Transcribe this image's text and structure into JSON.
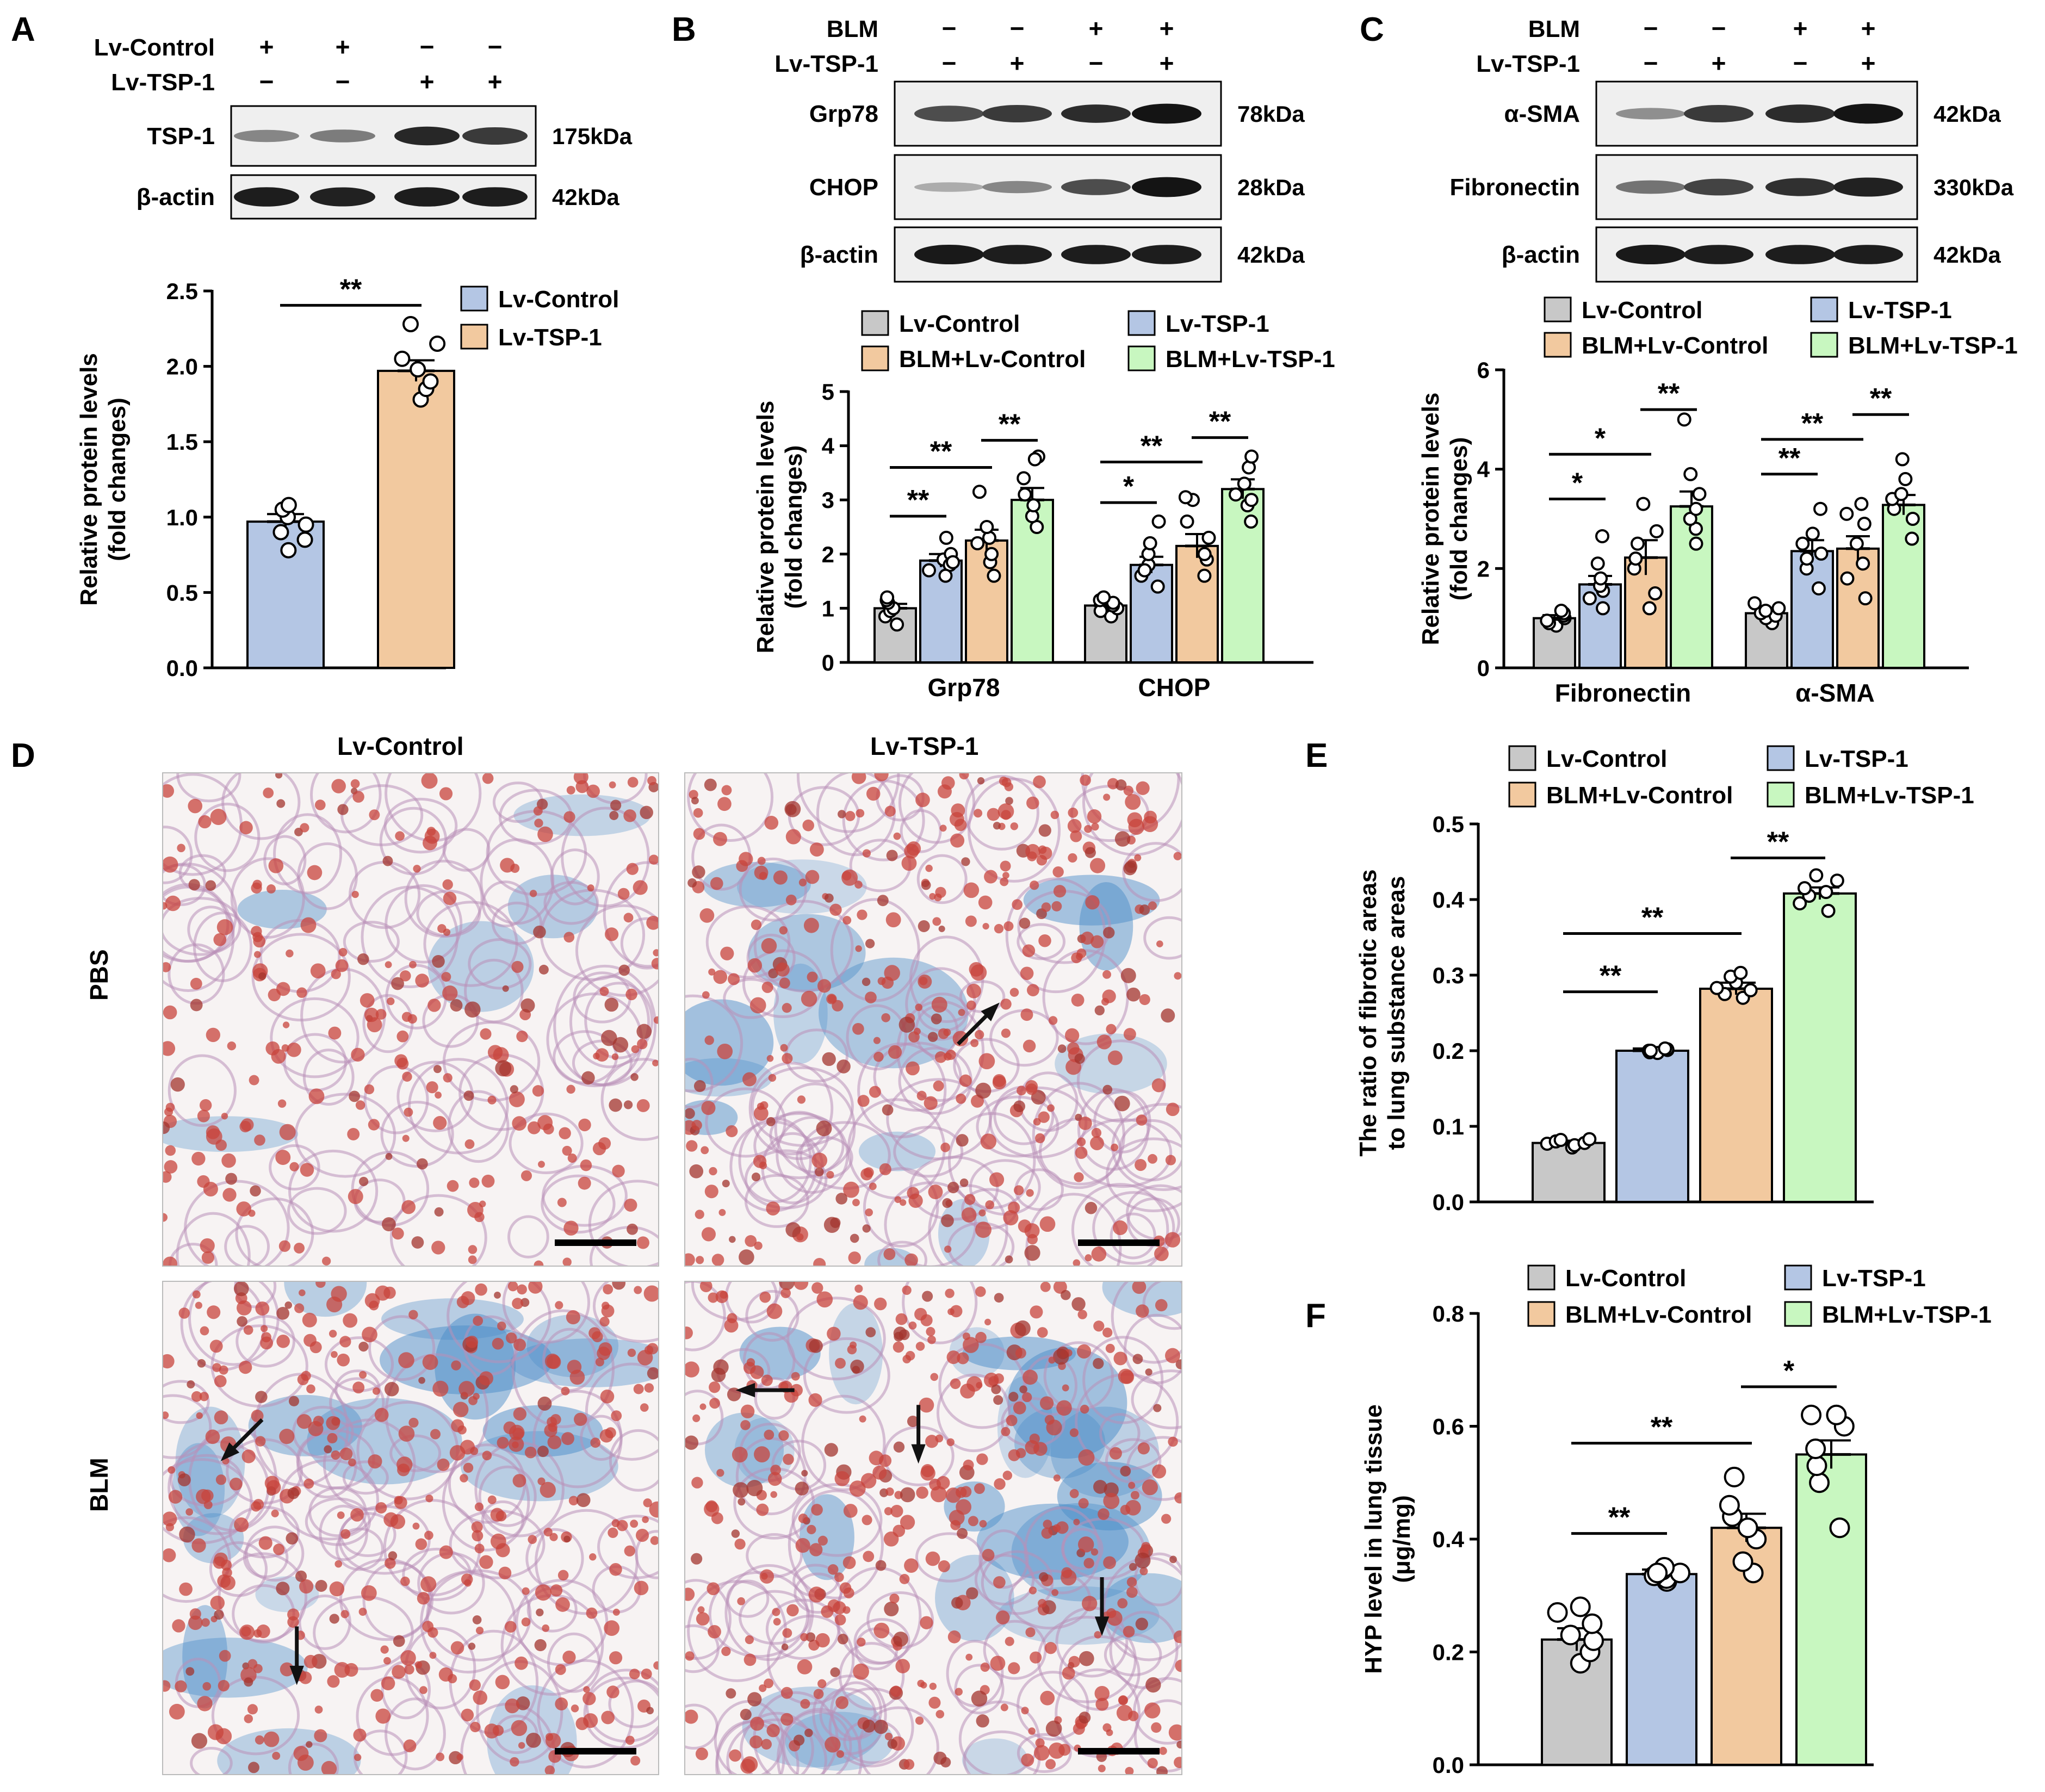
{
  "colors": {
    "control": "#c8c8c8",
    "tsp1": "#b4c6e4",
    "blm_control": "#f2c99f",
    "blm_tsp1": "#c8f7c0",
    "axis": "#000000",
    "blot_bg": "#efefef",
    "tissue_red": "#c8443c",
    "tissue_blue": "#4a8cc8"
  },
  "panels": {
    "A": {
      "letter": "A",
      "blot": {
        "conditions": [
          {
            "name": "Lv-Control",
            "signs": [
              "+",
              "+",
              "−",
              "−"
            ]
          },
          {
            "name": "Lv-TSP-1",
            "signs": [
              "−",
              "−",
              "+",
              "+"
            ]
          }
        ],
        "rows": [
          {
            "protein": "TSP-1",
            "kda": "175kDa",
            "intensity": [
              0.35,
              0.4,
              0.85,
              0.75
            ]
          },
          {
            "protein": "β-actin",
            "kda": "42kDa",
            "intensity": [
              0.9,
              0.88,
              0.9,
              0.9
            ]
          }
        ]
      }
    },
    "B": {
      "letter": "B",
      "blot": {
        "conditions": [
          {
            "name": "BLM",
            "signs": [
              "−",
              "−",
              "+",
              "+"
            ]
          },
          {
            "name": "Lv-TSP-1",
            "signs": [
              "−",
              "+",
              "−",
              "+"
            ]
          }
        ],
        "rows": [
          {
            "protein": "Grp78",
            "kda": "78kDa",
            "intensity": [
              0.65,
              0.75,
              0.82,
              0.95
            ]
          },
          {
            "protein": "CHOP",
            "kda": "28kDa",
            "intensity": [
              0.15,
              0.35,
              0.65,
              0.95
            ]
          },
          {
            "protein": "β-actin",
            "kda": "42kDa",
            "intensity": [
              0.92,
              0.9,
              0.9,
              0.9
            ]
          }
        ]
      }
    },
    "C": {
      "letter": "C",
      "blot": {
        "conditions": [
          {
            "name": "BLM",
            "signs": [
              "−",
              "−",
              "+",
              "+"
            ]
          },
          {
            "name": "Lv-TSP-1",
            "signs": [
              "−",
              "+",
              "−",
              "+"
            ]
          }
        ],
        "rows": [
          {
            "protein": "α-SMA",
            "kda": "42kDa",
            "intensity": [
              0.3,
              0.75,
              0.82,
              0.95
            ]
          },
          {
            "protein": "Fibronectin",
            "kda": "330kDa",
            "intensity": [
              0.45,
              0.7,
              0.8,
              0.88
            ]
          },
          {
            "protein": "β-actin",
            "kda": "42kDa",
            "intensity": [
              0.92,
              0.9,
              0.9,
              0.9
            ]
          }
        ]
      }
    },
    "D": {
      "letter": "D",
      "column_labels": [
        "Lv-Control",
        "Lv-TSP-1"
      ],
      "row_labels": [
        "PBS",
        "BLM"
      ]
    },
    "E": {
      "letter": "E"
    },
    "F": {
      "letter": "F"
    }
  },
  "chart_data": [
    {
      "id": "A",
      "type": "bar",
      "legend": [
        "Lv-Control",
        "Lv-TSP-1"
      ],
      "legend_position": "top-right",
      "categories": [
        "Lv-Control",
        "Lv-TSP-1"
      ],
      "values": [
        0.97,
        1.97
      ],
      "errors": [
        0.05,
        0.07
      ],
      "points": [
        [
          0.78,
          0.85,
          0.9,
          0.95,
          1.0,
          1.05,
          1.08
        ],
        [
          1.78,
          1.85,
          1.9,
          1.98,
          2.05,
          2.15,
          2.28
        ]
      ],
      "colors": [
        "#b4c6e4",
        "#f2c99f"
      ],
      "ylabel": [
        "Relative protein levels",
        "(fold changes)"
      ],
      "ylim": [
        0,
        2.5
      ],
      "yticks": [
        "0.0",
        "0.5",
        "1.0",
        "1.5",
        "2.0",
        "2.5"
      ],
      "significance": [
        {
          "from": 0,
          "to": 1,
          "label": "**"
        }
      ]
    },
    {
      "id": "B",
      "type": "bar",
      "legend": [
        "Lv-Control",
        "Lv-TSP-1",
        "BLM+Lv-Control",
        "BLM+Lv-TSP-1"
      ],
      "legend_position": "top",
      "groups": [
        "Grp78",
        "CHOP"
      ],
      "series": [
        {
          "name": "Lv-Control",
          "values": [
            1.0,
            1.05
          ],
          "errors": [
            0.08,
            0.07
          ]
        },
        {
          "name": "Lv-TSP-1",
          "values": [
            1.88,
            1.8
          ],
          "errors": [
            0.12,
            0.15
          ]
        },
        {
          "name": "BLM+Lv-Control",
          "values": [
            2.25,
            2.15
          ],
          "errors": [
            0.2,
            0.22
          ]
        },
        {
          "name": "BLM+Lv-TSP-1",
          "values": [
            3.0,
            3.2
          ],
          "errors": [
            0.22,
            0.18
          ]
        }
      ],
      "points": [
        [
          [
            0.7,
            0.85,
            0.95,
            1.0,
            1.1,
            1.15,
            1.2
          ],
          [
            1.9,
            2.0,
            2.3,
            1.7,
            1.8,
            1.6,
            1.85
          ],
          [
            1.85,
            2.0,
            2.2,
            2.3,
            2.5,
            3.15,
            1.6
          ],
          [
            2.5,
            2.7,
            2.9,
            3.1,
            3.4,
            3.8,
            3.75
          ]
        ],
        [
          [
            0.85,
            0.95,
            1.0,
            1.05,
            1.1,
            1.15,
            1.2
          ],
          [
            1.4,
            1.6,
            1.8,
            2.0,
            2.2,
            2.6,
            1.7
          ],
          [
            1.6,
            1.9,
            2.0,
            2.3,
            2.6,
            3.0,
            3.05
          ],
          [
            2.6,
            2.9,
            3.1,
            3.3,
            3.6,
            3.8,
            3.0
          ]
        ]
      ],
      "colors": [
        "#c8c8c8",
        "#b4c6e4",
        "#f2c99f",
        "#c8f7c0"
      ],
      "ylabel": [
        "Relative protein levels",
        "(fold changes)"
      ],
      "ylim": [
        0,
        5
      ],
      "yticks": [
        "0",
        "1",
        "2",
        "3",
        "4",
        "5"
      ],
      "significance": [
        {
          "group": 0,
          "from": 0,
          "to": 1,
          "label": "**",
          "y": 2.7
        },
        {
          "group": 0,
          "from": 0,
          "to": 2,
          "label": "**",
          "y": 3.6
        },
        {
          "group": 0,
          "from": 2,
          "to": 3,
          "label": "**",
          "y": 4.1
        },
        {
          "group": 1,
          "from": 0,
          "to": 1,
          "label": "*",
          "y": 2.95
        },
        {
          "group": 1,
          "from": 0,
          "to": 2,
          "label": "**",
          "y": 3.7
        },
        {
          "group": 1,
          "from": 2,
          "to": 3,
          "label": "**",
          "y": 4.15
        }
      ]
    },
    {
      "id": "C",
      "type": "bar",
      "legend": [
        "Lv-Control",
        "Lv-TSP-1",
        "BLM+Lv-Control",
        "BLM+Lv-TSP-1"
      ],
      "legend_position": "top",
      "groups": [
        "Fibronectin",
        "α-SMA"
      ],
      "series": [
        {
          "name": "Lv-Control",
          "values": [
            1.0,
            1.1
          ],
          "errors": [
            0.06,
            0.08
          ]
        },
        {
          "name": "Lv-TSP-1",
          "values": [
            1.68,
            2.35
          ],
          "errors": [
            0.17,
            0.22
          ]
        },
        {
          "name": "BLM+Lv-Control",
          "values": [
            2.22,
            2.4
          ],
          "errors": [
            0.35,
            0.25
          ]
        },
        {
          "name": "BLM+Lv-TSP-1",
          "values": [
            3.25,
            3.28
          ],
          "errors": [
            0.3,
            0.2
          ]
        }
      ],
      "points": [
        [
          [
            0.85,
            0.9,
            0.95,
            1.0,
            1.05,
            1.1,
            1.15
          ],
          [
            1.2,
            1.4,
            1.55,
            1.65,
            1.8,
            2.1,
            2.65
          ],
          [
            1.2,
            1.5,
            2.0,
            2.2,
            2.5,
            2.75,
            3.3
          ],
          [
            2.5,
            2.8,
            3.0,
            3.2,
            3.5,
            3.9,
            5.0
          ]
        ],
        [
          [
            0.9,
            1.0,
            1.05,
            1.1,
            1.15,
            1.2,
            1.3
          ],
          [
            1.6,
            2.0,
            2.2,
            2.3,
            2.5,
            2.7,
            3.2
          ],
          [
            1.4,
            1.8,
            2.1,
            2.5,
            2.9,
            3.1,
            3.3
          ],
          [
            2.6,
            3.0,
            3.2,
            3.4,
            3.5,
            3.8,
            4.2
          ]
        ]
      ],
      "colors": [
        "#c8c8c8",
        "#b4c6e4",
        "#f2c99f",
        "#c8f7c0"
      ],
      "ylabel": [
        "Relative protein levels",
        "(fold changes)"
      ],
      "ylim": [
        0,
        6
      ],
      "yticks": [
        "0",
        "2",
        "4",
        "6"
      ],
      "significance": [
        {
          "group": 0,
          "from": 0,
          "to": 1,
          "label": "*",
          "y": 3.4
        },
        {
          "group": 0,
          "from": 0,
          "to": 2,
          "label": "*",
          "y": 4.3
        },
        {
          "group": 0,
          "from": 2,
          "to": 3,
          "label": "**",
          "y": 5.2
        },
        {
          "group": 1,
          "from": 0,
          "to": 1,
          "label": "**",
          "y": 3.9
        },
        {
          "group": 1,
          "from": 0,
          "to": 2,
          "label": "**",
          "y": 4.6
        },
        {
          "group": 1,
          "from": 2,
          "to": 3,
          "label": "**",
          "y": 5.1
        }
      ]
    },
    {
      "id": "E",
      "type": "bar",
      "legend": [
        "Lv-Control",
        "Lv-TSP-1",
        "BLM+Lv-Control",
        "BLM+Lv-TSP-1"
      ],
      "legend_position": "top",
      "categories": [
        "Lv-Control",
        "Lv-TSP-1",
        "BLM+Lv-Control",
        "BLM+Lv-TSP-1"
      ],
      "values": [
        0.078,
        0.2,
        0.282,
        0.408
      ],
      "errors": [
        0.003,
        0.003,
        0.008,
        0.008
      ],
      "points": [
        [
          0.072,
          0.075,
          0.077,
          0.078,
          0.08,
          0.082,
          0.083
        ],
        [
          0.197,
          0.198,
          0.2,
          0.2,
          0.201,
          0.202,
          0.203
        ],
        [
          0.27,
          0.275,
          0.28,
          0.283,
          0.29,
          0.298,
          0.303
        ],
        [
          0.385,
          0.395,
          0.405,
          0.41,
          0.415,
          0.425,
          0.432
        ]
      ],
      "colors": [
        "#c8c8c8",
        "#b4c6e4",
        "#f2c99f",
        "#c8f7c0"
      ],
      "ylabel": [
        "The ratio of fibrotic areas",
        "to lung substance areas"
      ],
      "ylim": [
        0,
        0.5
      ],
      "yticks": [
        "0.0",
        "0.1",
        "0.2",
        "0.3",
        "0.4",
        "0.5"
      ],
      "significance": [
        {
          "from": 0,
          "to": 1,
          "label": "**",
          "y": 0.278
        },
        {
          "from": 0,
          "to": 2,
          "label": "**",
          "y": 0.355
        },
        {
          "from": 2,
          "to": 3,
          "label": "**",
          "y": 0.455
        }
      ]
    },
    {
      "id": "F",
      "type": "bar",
      "legend": [
        "Lv-Control",
        "Lv-TSP-1",
        "BLM+Lv-Control",
        "BLM+Lv-TSP-1"
      ],
      "legend_position": "top",
      "categories": [
        "Lv-Control",
        "Lv-TSP-1",
        "BLM+Lv-Control",
        "BLM+Lv-TSP-1"
      ],
      "values": [
        0.222,
        0.338,
        0.42,
        0.55
      ],
      "errors": [
        0.02,
        0.008,
        0.025,
        0.025
      ],
      "points": [
        [
          0.18,
          0.2,
          0.22,
          0.23,
          0.25,
          0.27,
          0.28
        ],
        [
          0.325,
          0.33,
          0.335,
          0.34,
          0.345,
          0.35,
          0.34
        ],
        [
          0.34,
          0.36,
          0.4,
          0.42,
          0.44,
          0.46,
          0.51
        ],
        [
          0.42,
          0.5,
          0.53,
          0.56,
          0.6,
          0.62,
          0.62
        ]
      ],
      "colors": [
        "#c8c8c8",
        "#b4c6e4",
        "#f2c99f",
        "#c8f7c0"
      ],
      "ylabel": [
        "HYP level in lung tissue",
        "(μg/mg)"
      ],
      "ylim": [
        0,
        0.8
      ],
      "yticks": [
        "0.0",
        "0.2",
        "0.4",
        "0.6",
        "0.8"
      ],
      "significance": [
        {
          "from": 0,
          "to": 1,
          "label": "**",
          "y": 0.41
        },
        {
          "from": 0,
          "to": 2,
          "label": "**",
          "y": 0.57
        },
        {
          "from": 2,
          "to": 3,
          "label": "*",
          "y": 0.67
        }
      ]
    }
  ]
}
